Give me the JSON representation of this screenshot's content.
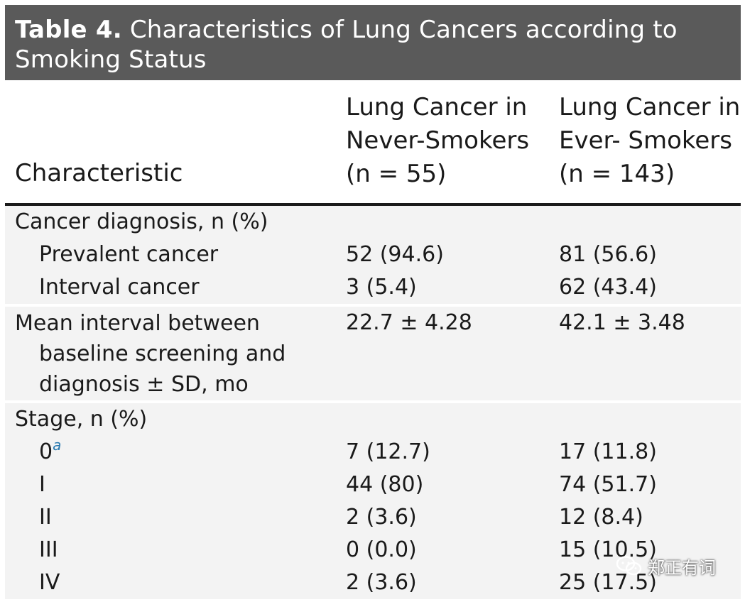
{
  "table": {
    "title_label": "Table 4.",
    "title_text": " Characteristics of Lung Cancers according to Smoking Status",
    "headers": {
      "characteristic": "Characteristic",
      "never": "Lung Cancer in\nNever-Smokers\n(n = 55)",
      "ever": "Lung Cancer in\nEver- Smokers\n(n = 143)"
    },
    "sections": {
      "diagnosis": {
        "label": "Cancer diagnosis, n (%)",
        "rows": [
          {
            "label": "Prevalent cancer",
            "never": "52 (94.6)",
            "ever": "81 (56.6)"
          },
          {
            "label": "Interval cancer",
            "never": "3 (5.4)",
            "ever": "62 (43.4)"
          }
        ]
      },
      "interval": {
        "label_line1": "Mean interval between",
        "label_rest": "baseline screening and diagnosis ± SD, mo",
        "never": "22.7 ± 4.28",
        "ever": "42.1 ± 3.48"
      },
      "stage": {
        "label": "Stage, n (%)",
        "footnote_mark": "a",
        "rows": [
          {
            "label": "0",
            "never": "7 (12.7)",
            "ever": "17 (11.8)"
          },
          {
            "label": "I",
            "never": "44 (80)",
            "ever": "74 (51.7)"
          },
          {
            "label": "II",
            "never": "2 (3.6)",
            "ever": "12 (8.4)"
          },
          {
            "label": "III",
            "never": "0 (0.0)",
            "ever": "15 (10.5)"
          },
          {
            "label": "IV",
            "never": "2 (3.6)",
            "ever": "25 (17.5)"
          }
        ]
      }
    }
  },
  "watermark": {
    "icon": "wechat-icon",
    "text": "郑正有词"
  }
}
